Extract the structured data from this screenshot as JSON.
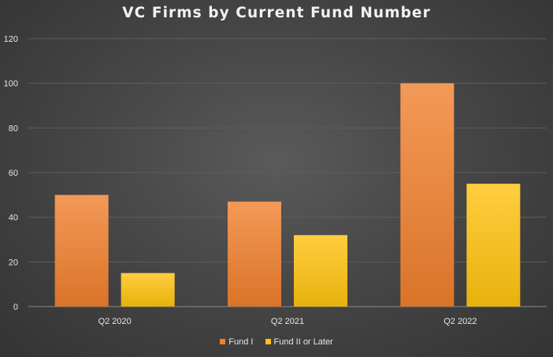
{
  "chart_data": {
    "type": "bar",
    "title": "VC Firms by Current Fund Number",
    "categories": [
      "Q2 2020",
      "Q2 2021",
      "Q2 2022"
    ],
    "series": [
      {
        "name": "Fund I",
        "values": [
          50,
          47,
          100
        ],
        "color": "#f07f2d"
      },
      {
        "name": "Fund II or Later",
        "values": [
          15,
          32,
          55
        ],
        "color": "#ffc20e"
      }
    ],
    "ylim": [
      0,
      120
    ],
    "yticks": [
      0,
      20,
      40,
      60,
      80,
      100,
      120
    ],
    "grid": true,
    "legend": "bottom"
  }
}
